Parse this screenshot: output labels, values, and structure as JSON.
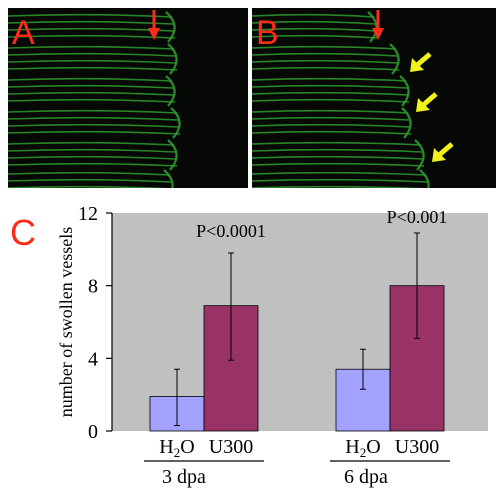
{
  "panels": [
    {
      "letter": "A"
    },
    {
      "letter": "B"
    }
  ],
  "chart_letter": "C",
  "chart_data": {
    "type": "bar",
    "ylabel": "number of swollen vessels",
    "ylim": [
      0,
      12
    ],
    "yticks": [
      0,
      4,
      8,
      12
    ],
    "groups": [
      {
        "label": "3 dpa",
        "bars": [
          {
            "label": "H2O",
            "value": 1.9,
            "err_low": 0.3,
            "err_high": 3.4,
            "color": "#a3a3ff"
          },
          {
            "label": "U300",
            "value": 6.9,
            "err_low": 3.9,
            "err_high": 9.8,
            "color": "#993366"
          }
        ],
        "pvalue": "P<0.0001"
      },
      {
        "label": "6 dpa",
        "bars": [
          {
            "label": "H2O",
            "value": 3.4,
            "err_low": 2.3,
            "err_high": 4.5,
            "color": "#a3a3ff"
          },
          {
            "label": "U300",
            "value": 8.0,
            "err_low": 5.1,
            "err_high": 10.9,
            "color": "#993366"
          }
        ],
        "pvalue": "P<0.001"
      }
    ],
    "plot_background": "#c0c0c0",
    "grid": false
  },
  "colors": {
    "letter_red": "#ff2a1a",
    "vessel_green": "#2f9a2f",
    "arrow_yellow": "#f2f21a"
  }
}
